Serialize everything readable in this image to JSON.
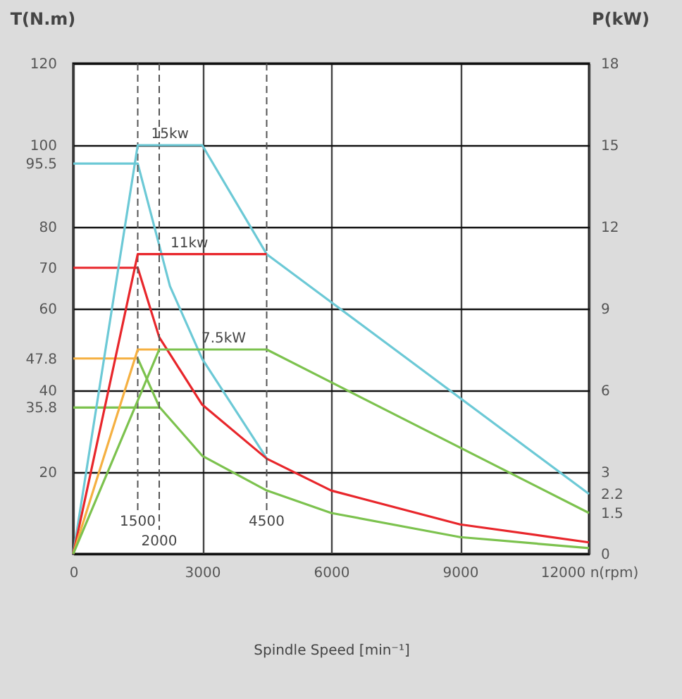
{
  "chart_data": {
    "type": "line",
    "xlabel": "Spindle Speed [min⁻¹]",
    "ylabel": "T(N.m)",
    "y2label": "P(kW)",
    "series": [
      {
        "color": "#6cc9d6",
        "x": [
          0,
          1500,
          2250,
          3000,
          4500
        ],
        "values": [
          95.5,
          95.5,
          65.5,
          47.7,
          23.4
        ]
      },
      {
        "color": "#6cc9d6",
        "axis": "y2",
        "x": [
          0,
          1500,
          3000,
          4500,
          12000
        ],
        "values": [
          0,
          15,
          15,
          11,
          2.2
        ]
      },
      {
        "color": "#e8262b",
        "x": [
          0,
          1500,
          2000,
          3000,
          4500,
          6000,
          9000,
          12000
        ],
        "values": [
          70,
          70,
          53,
          36.5,
          23.3,
          15.5,
          7.2,
          2.8
        ]
      },
      {
        "color": "#e8262b",
        "axis": "y2",
        "x": [
          0,
          1500,
          4500
        ],
        "values": [
          0,
          11,
          11
        ]
      },
      {
        "color": "#f5b041",
        "x": [
          0,
          1500
        ],
        "values": [
          47.8,
          47.8
        ]
      },
      {
        "color": "#f5b041",
        "axis": "y2",
        "x": [
          0,
          1500,
          2000
        ],
        "values": [
          0,
          7.5,
          7.5
        ]
      },
      {
        "color": "#7cc24e",
        "x": [
          1500,
          2000,
          3000,
          4500,
          6000,
          9000,
          12000
        ],
        "values": [
          47.8,
          36,
          24,
          15.5,
          10,
          4.1,
          1.4
        ]
      },
      {
        "color": "#7cc24e",
        "x": [
          0,
          2000
        ],
        "values": [
          35.8,
          35.8
        ]
      },
      {
        "color": "#7cc24e",
        "axis": "y2",
        "x": [
          0,
          2000,
          4500,
          12000
        ],
        "values": [
          0,
          7.5,
          7.5,
          1.5
        ]
      }
    ],
    "xlim": [
      0,
      12000
    ],
    "xticks": [
      0,
      3000,
      6000,
      9000,
      {
        "value": 12000,
        "label": "12000 n(rpm)"
      }
    ],
    "ylim": [
      0,
      120
    ],
    "yticks": [
      20,
      35.8,
      40,
      47.8,
      60,
      70,
      80,
      95.5,
      100,
      120
    ],
    "y2lim": [
      0,
      18
    ],
    "y2ticks": [
      0,
      1.5,
      2.2,
      3,
      6,
      9,
      12,
      15,
      18
    ],
    "ref_lines": [
      {
        "axis": "x",
        "value": 1500,
        "label": "1500",
        "line_style": "dashed",
        "color": "#555555"
      },
      {
        "axis": "x",
        "value": 2000,
        "label": "2000",
        "line_style": "dashed",
        "color": "#555555"
      },
      {
        "axis": "x",
        "value": 4500,
        "label": "4500",
        "line_style": "dashed",
        "color": "#555555"
      }
    ],
    "annotations": [
      {
        "text": "15kw",
        "x": 2250,
        "y": 100
      },
      {
        "text": "11kw",
        "x": 2700,
        "y": 73.3
      },
      {
        "text": "7.5kW",
        "x": 3500,
        "y": 50
      }
    ],
    "grid": true,
    "line_style": "solid",
    "marker": "none"
  }
}
